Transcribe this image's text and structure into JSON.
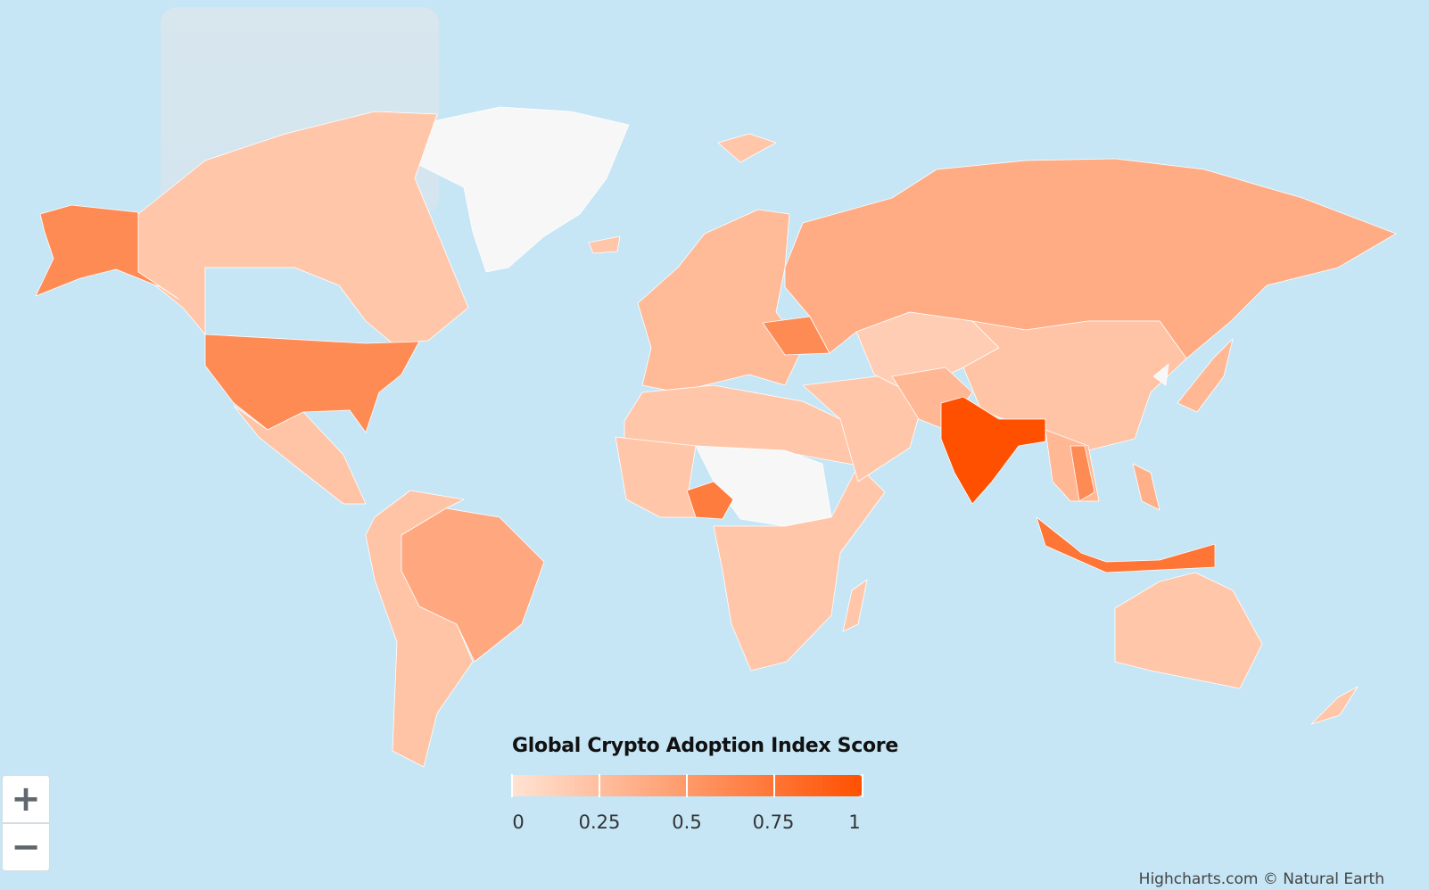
{
  "chart_data": {
    "type": "map",
    "title": "Global Crypto Adoption Index Score",
    "color_axis": {
      "min": 0,
      "max": 1,
      "tick_labels": [
        "0",
        "0.25",
        "0.5",
        "0.75",
        "1"
      ],
      "min_color": "#FFE3D3",
      "max_color": "#FF5000",
      "null_color": "#F7F7F7"
    },
    "background_color": "#C6E5F5",
    "regions": [
      {
        "id": "greenland",
        "value": null
      },
      {
        "id": "alaska-usa",
        "value": 0.6
      },
      {
        "id": "canada",
        "value": 0.2
      },
      {
        "id": "usa",
        "value": 0.6
      },
      {
        "id": "mexico-central-america",
        "value": 0.22
      },
      {
        "id": "brazil",
        "value": 0.4
      },
      {
        "id": "rest-south-america",
        "value": 0.22
      },
      {
        "id": "europe",
        "value": 0.28
      },
      {
        "id": "ukraine",
        "value": 0.6
      },
      {
        "id": "russia",
        "value": 0.38
      },
      {
        "id": "north-africa",
        "value": 0.2
      },
      {
        "id": "sahel",
        "value": null
      },
      {
        "id": "west-africa",
        "value": 0.2
      },
      {
        "id": "nigeria",
        "value": 0.7
      },
      {
        "id": "sub-saharan-africa",
        "value": 0.2
      },
      {
        "id": "madagascar",
        "value": 0.2
      },
      {
        "id": "middle-east",
        "value": 0.2
      },
      {
        "id": "central-asia",
        "value": 0.15
      },
      {
        "id": "iran-afghanistan-pakistan",
        "value": 0.3
      },
      {
        "id": "china-mongolia",
        "value": 0.22
      },
      {
        "id": "india",
        "value": 1
      },
      {
        "id": "southeast-asia",
        "value": 0.3
      },
      {
        "id": "vietnam",
        "value": 0.6
      },
      {
        "id": "philippines",
        "value": 0.35
      },
      {
        "id": "indonesia",
        "value": 0.75
      },
      {
        "id": "japan",
        "value": 0.3
      },
      {
        "id": "korea",
        "value": null
      },
      {
        "id": "australia",
        "value": 0.2
      },
      {
        "id": "new-zealand",
        "value": 0.2
      },
      {
        "id": "iceland",
        "value": 0.2
      },
      {
        "id": "svalbard-arctic",
        "value": 0.2
      }
    ]
  },
  "zoom": {
    "in_label": "+",
    "out_label": "−"
  },
  "credits": "Highcharts.com © Natural Earth"
}
